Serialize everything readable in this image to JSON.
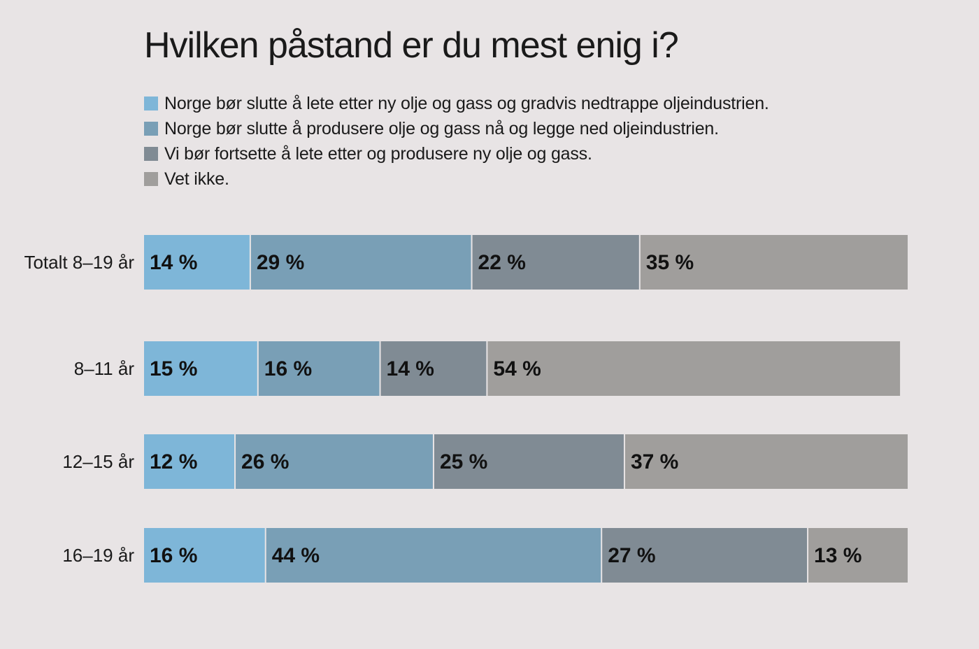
{
  "chart_data": {
    "type": "bar",
    "orientation": "horizontal",
    "stacked": true,
    "title": "Hvilken påstand er du mest enig i?",
    "categories": [
      "Totalt 8–19 år",
      "8–11 år",
      "12–15 år",
      "16–19 år"
    ],
    "series": [
      {
        "name": "Norge bør slutte å lete etter ny olje og gass og gradvis nedtrappe oljeindustrien.",
        "color": "#7eb6d8",
        "values": [
          14,
          15,
          12,
          16
        ],
        "labels": [
          "14 %",
          "15 %",
          "12 %",
          "16 %"
        ]
      },
      {
        "name": "Norge bør slutte å produsere olje og gass nå og legge ned oljeindustrien.",
        "color": "#799fb6",
        "values": [
          29,
          16,
          26,
          44
        ],
        "labels": [
          "29 %",
          "16 %",
          "26 %",
          "44 %"
        ]
      },
      {
        "name": "Vi bør fortsette å lete etter og produsere ny olje og gass.",
        "color": "#808b94",
        "values": [
          22,
          14,
          25,
          27
        ],
        "labels": [
          "22 %",
          "14 %",
          "25 %",
          "27 %"
        ]
      },
      {
        "name": "Vet ikke.",
        "color": "#a09e9c",
        "values": [
          35,
          54,
          37,
          13
        ],
        "labels": [
          "35 %",
          "54 %",
          "37 %",
          "13 %"
        ]
      }
    ],
    "xlim": [
      0,
      100
    ],
    "grid": false,
    "legend": "top-left"
  }
}
